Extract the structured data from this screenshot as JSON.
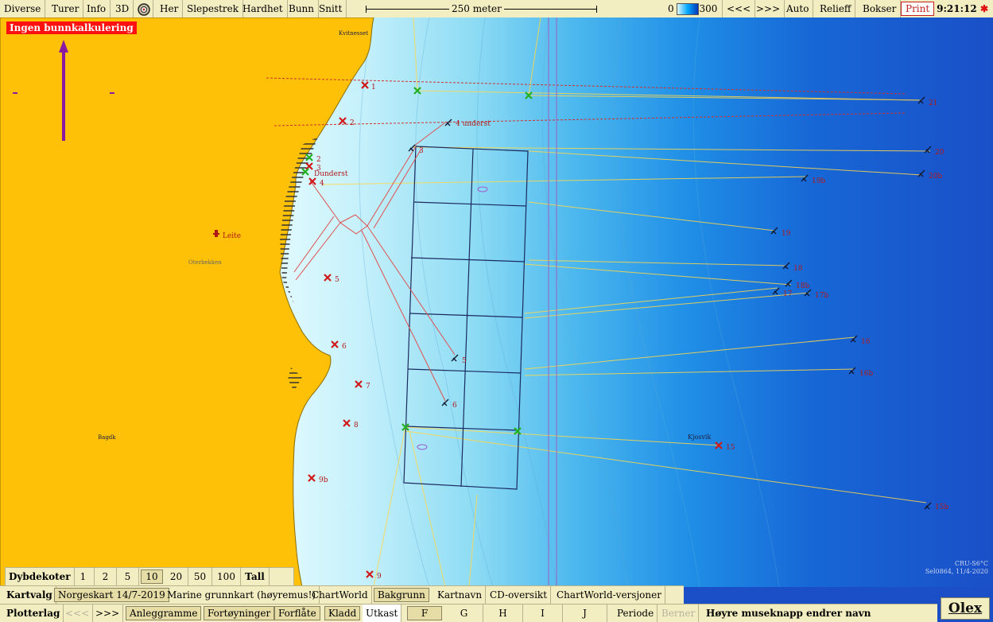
{
  "toolbar": {
    "items": [
      "Diverse",
      "Turer",
      "Info",
      "3D",
      "Her",
      "Slepestrek",
      "Hardhet",
      "Bunn",
      "Snitt"
    ],
    "scale_label": "250 meter",
    "depth_min": "0",
    "depth_max": "300",
    "nav_prev": "<<<",
    "nav_next": ">>>",
    "auto": "Auto",
    "relief": "Relieff",
    "bokser": "Bokser",
    "print": "Print",
    "time": "9:21:12"
  },
  "map": {
    "warning": "Ingen bunnkalkulering",
    "places": [
      "Kvitnesset",
      "Leite",
      "Oterbekken",
      "Bagdk",
      "Kjosvik"
    ],
    "marks_red": [
      "1",
      "2",
      "3",
      "4",
      "5",
      "6",
      "7",
      "8",
      "9b",
      "9",
      "15"
    ],
    "marks_fish": [
      "21",
      "20",
      "20b",
      "19b",
      "19",
      "18",
      "18b",
      "17",
      "17b",
      "16",
      "16b",
      "15b"
    ],
    "marks_misc": [
      "4 underst",
      "3",
      "5",
      "6",
      "2",
      "2",
      "Dunderst",
      "3"
    ],
    "corner_info": [
      "CRU-S6°C",
      "Sel0864, 11/4-2020"
    ]
  },
  "dybdekoter": {
    "label": "Dybdekoter",
    "values": [
      "1",
      "2",
      "5",
      "10",
      "20",
      "50",
      "100",
      "Tall"
    ],
    "selected": "10"
  },
  "kartvalg": {
    "label": "Kartvalg",
    "items": [
      "Norgeskart 14/7-2019",
      "Marine grunnkart (høyremus!)",
      "ChartWorld",
      "Bakgrunn",
      "Kartnavn",
      "CD-oversikt",
      "ChartWorld-versjoner"
    ],
    "selected": [
      "Norgeskart 14/7-2019",
      "Bakgrunn"
    ]
  },
  "plotterlag": {
    "label": "Plotterlag",
    "nav_prev": "<<<",
    "nav_next": ">>>",
    "items": [
      "Anleggramme",
      "Fortøyninger",
      "Forflåte",
      "Kladd",
      "Utkast",
      "F",
      "G",
      "H",
      "I",
      "J",
      "Periode",
      "Berner"
    ],
    "hint": "Høyre museknapp endrer navn"
  },
  "brand": "Olex",
  "colors": {
    "land": "#ffc107",
    "shallow": "#dff8ff",
    "deep": "#1a4fc8",
    "warning": "#ff1010"
  }
}
